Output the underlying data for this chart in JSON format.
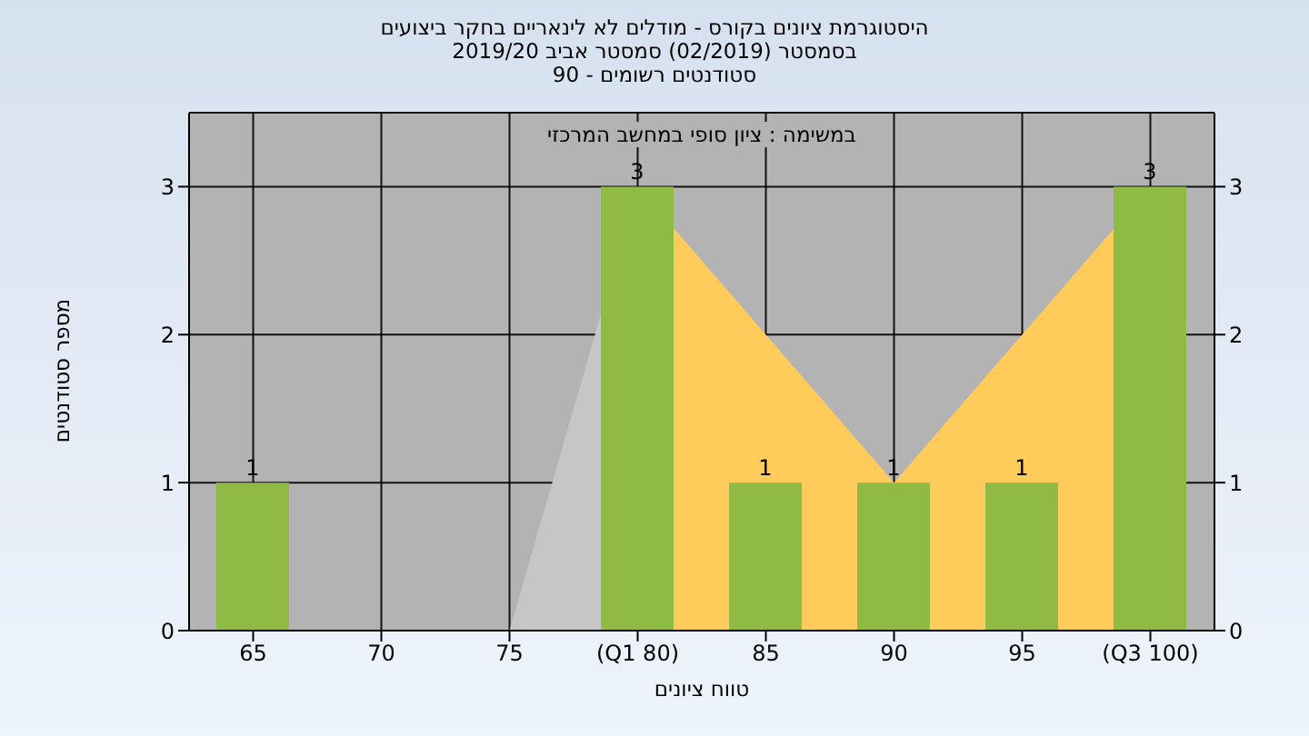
{
  "chart_data": {
    "type": "bar",
    "title": [
      "היסטוגרמת ציונים בקורס - מודלים לא לינאריים בחקר ביצועים",
      "בסמסטר  (02/2019)  סמסטר אביב 2019/20",
      "סטודנטים רשומים - 90"
    ],
    "subtitle": "במשימה : ציון סופי במחשב המרכזי",
    "xlabel": "טווח ציונים",
    "ylabel": "מספר סטודנטים",
    "categories": [
      "65",
      "70",
      "75",
      "(Q1 80)",
      "85",
      "90",
      "95",
      "(Q3 100)"
    ],
    "series": [
      {
        "type": "area",
        "color": "#c6c6c6",
        "values": [
          null,
          null,
          0,
          3,
          null,
          null,
          null,
          null
        ]
      },
      {
        "type": "area",
        "color": "#ffcc5c",
        "values": [
          null,
          null,
          null,
          3,
          2,
          1,
          2,
          3
        ]
      },
      {
        "color": "#8fbb45",
        "values": [
          1,
          0,
          0,
          3,
          1,
          1,
          1,
          3
        ],
        "value_labels": [
          "1",
          null,
          null,
          "3",
          "1",
          "1",
          "1",
          "3"
        ]
      }
    ],
    "ylim": [
      0,
      3.5
    ],
    "yticks": [
      0,
      1,
      2,
      3
    ],
    "y2lim": [
      0,
      3.5
    ],
    "y2ticks": [
      0,
      1,
      2,
      3
    ],
    "grid": true
  }
}
